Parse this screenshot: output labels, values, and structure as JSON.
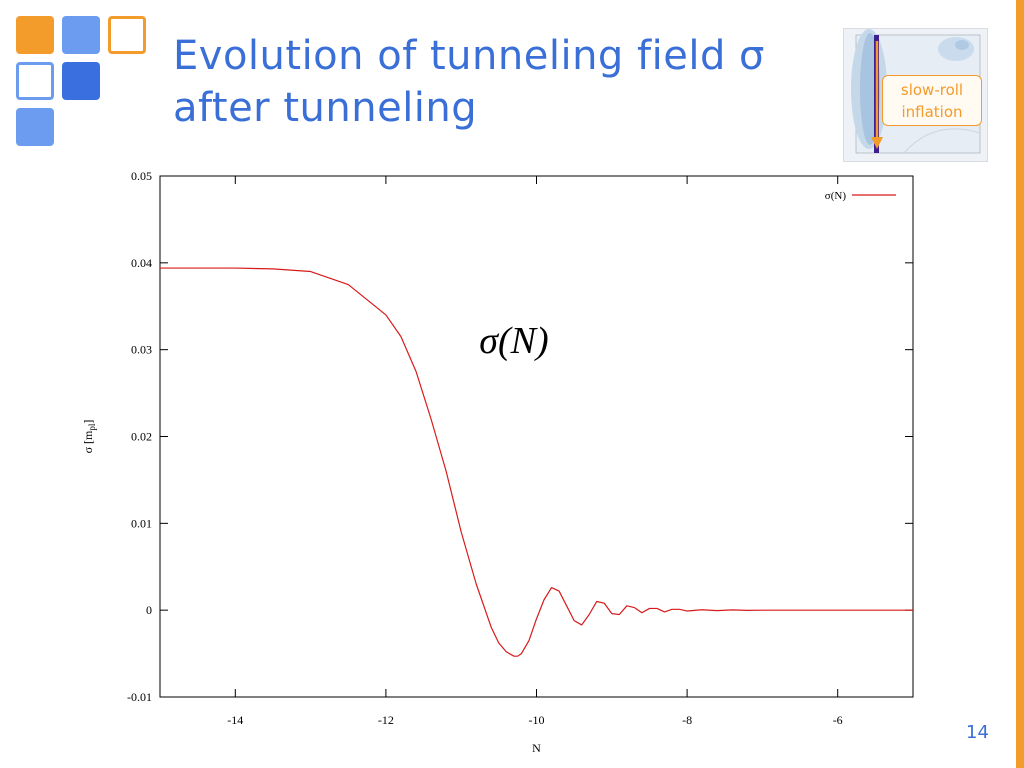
{
  "slide": {
    "title_line1": "Evolution of tunneling field σ",
    "title_line2": "after tunneling",
    "page_number": "14",
    "accent_color": "#f39b2b",
    "title_color": "#3a6fd8"
  },
  "logo": {
    "squares": [
      {
        "fill": "#f39b2b",
        "outline": false
      },
      {
        "fill": "#6b9cf0",
        "outline": false
      },
      {
        "fill": "#f39b2b",
        "outline": true
      },
      {
        "fill": "#6b9cf0",
        "outline": true
      },
      {
        "fill": "#3a6fe0",
        "outline": false
      },
      {
        "fill": "#6b9cf0",
        "outline": false
      }
    ]
  },
  "inset": {
    "label_line1": "slow-roll",
    "label_line2": "inflation"
  },
  "chart_data": {
    "type": "line",
    "xlabel": "N",
    "ylabel_main": "σ [m",
    "ylabel_sub": "pl",
    "ylabel_close": "]",
    "xlim": [
      -15,
      -5
    ],
    "ylim": [
      -0.01,
      0.05
    ],
    "x_ticks": [
      -14,
      -12,
      -10,
      -8,
      -6
    ],
    "x_tick_labels": [
      "-14",
      "-12",
      "-10",
      "-8",
      "-6"
    ],
    "y_ticks": [
      -0.01,
      0,
      0.01,
      0.02,
      0.03,
      0.04,
      0.05
    ],
    "y_tick_labels": [
      "-0.01",
      "0",
      "0.01",
      "0.02",
      "0.03",
      "0.04",
      "0.05"
    ],
    "legend_position": "top-right",
    "annotation": "σ(N)",
    "series": [
      {
        "name": "σ(N)",
        "color": "#d81a1a",
        "x": [
          -15,
          -14.0,
          -13.5,
          -13.0,
          -12.5,
          -12.0,
          -11.8,
          -11.6,
          -11.4,
          -11.2,
          -11.0,
          -10.8,
          -10.6,
          -10.5,
          -10.4,
          -10.3,
          -10.25,
          -10.2,
          -10.1,
          -10.0,
          -9.9,
          -9.8,
          -9.7,
          -9.6,
          -9.5,
          -9.4,
          -9.3,
          -9.2,
          -9.1,
          -9.0,
          -8.9,
          -8.8,
          -8.7,
          -8.6,
          -8.5,
          -8.4,
          -8.3,
          -8.2,
          -8.1,
          -8.0,
          -7.8,
          -7.6,
          -7.4,
          -7.2,
          -7.0,
          -6.5,
          -6.0,
          -5.5,
          -5.0
        ],
        "y": [
          0.0394,
          0.0394,
          0.0393,
          0.039,
          0.0375,
          0.034,
          0.0315,
          0.0275,
          0.022,
          0.016,
          0.009,
          0.003,
          -0.002,
          -0.0038,
          -0.0048,
          -0.0053,
          -0.0053,
          -0.005,
          -0.0035,
          -0.001,
          0.0012,
          0.0026,
          0.0022,
          0.0005,
          -0.0012,
          -0.0017,
          -0.0005,
          0.001,
          0.0008,
          -0.0004,
          -0.0005,
          0.0005,
          0.0003,
          -0.0003,
          0.0002,
          0.0002,
          -0.0002,
          0.0001,
          0.0001,
          -0.0001,
          5e-05,
          -5e-05,
          3e-05,
          -2e-05,
          0.0,
          0.0,
          0.0,
          0.0,
          0.0
        ]
      }
    ]
  }
}
